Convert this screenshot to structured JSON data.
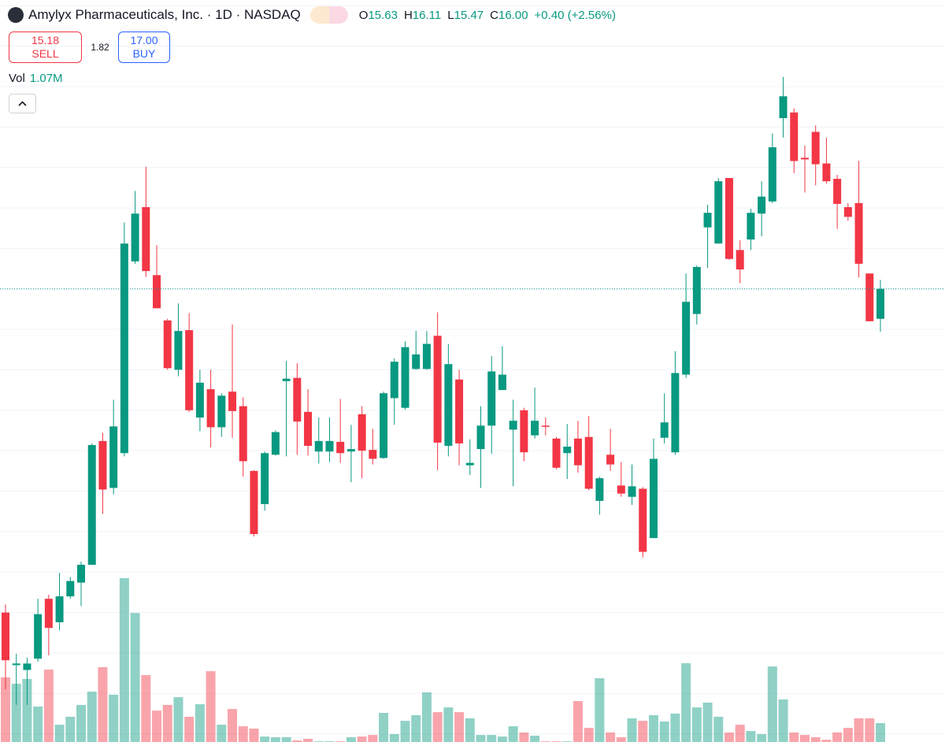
{
  "header": {
    "title": "Amylyx Pharmaceuticals, Inc. · 1D · NASDAQ",
    "open_label": "O",
    "open": "15.63",
    "high_label": "H",
    "high": "16.11",
    "low_label": "L",
    "low": "15.47",
    "close_label": "C",
    "close": "16.00",
    "change": "+0.40 (+2.56%)"
  },
  "trade": {
    "sell_price": "15.18",
    "sell_label": "SELL",
    "spread": "1.82",
    "buy_price": "17.00",
    "buy_label": "BUY"
  },
  "volume_legend": {
    "label": "Vol",
    "value": "1.07M"
  },
  "chart_data": {
    "type": "candlestick",
    "open": [
      12.0,
      11.35,
      11.29,
      11.43,
      12.17,
      11.88,
      12.2,
      12.37,
      12.59,
      14.12,
      13.54,
      13.97,
      16.34,
      17.01,
      16.17,
      15.61,
      15.0,
      15.49,
      14.41,
      14.76,
      14.29,
      14.73,
      14.55,
      13.75,
      13.34,
      13.95,
      14.86,
      14.9,
      14.48,
      13.99,
      13.99,
      14.11,
      13.99,
      14.45,
      14.01,
      13.91,
      14.65,
      14.53,
      15.01,
      15.01,
      15.42,
      14.06,
      14.88,
      13.82,
      14.02,
      14.31,
      14.75,
      14.26,
      14.5,
      14.19,
      14.31,
      14.15,
      13.97,
      14.15,
      14.17,
      13.38,
      13.95,
      13.57,
      13.43,
      13.53,
      12.92,
      14.16,
      13.98,
      14.94,
      15.69,
      16.76,
      16.56,
      17.37,
      16.48,
      16.61,
      16.93,
      17.08,
      18.11,
      18.18,
      17.62,
      17.94,
      17.55,
      17.36,
      17.01,
      17.06,
      16.19,
      15.63
    ],
    "high": [
      12.1,
      11.49,
      11.44,
      12.17,
      12.22,
      12.49,
      12.44,
      12.63,
      14.09,
      14.22,
      14.63,
      16.82,
      17.21,
      17.51,
      16.54,
      15.63,
      15.82,
      15.7,
      15.0,
      15.0,
      14.71,
      15.56,
      14.66,
      13.76,
      13.99,
      14.25,
      15.11,
      15.08,
      14.76,
      14.41,
      14.41,
      14.64,
      14.32,
      14.55,
      14.27,
      14.73,
      15.14,
      15.35,
      15.48,
      15.48,
      15.71,
      15.32,
      15.0,
      14.14,
      14.55,
      15.17,
      15.29,
      14.63,
      14.53,
      14.78,
      14.41,
      14.17,
      14.33,
      14.37,
      14.43,
      13.68,
      14.27,
      13.86,
      13.83,
      13.55,
      14.15,
      14.71,
      15.23,
      16.19,
      16.29,
      17.04,
      17.37,
      17.37,
      16.6,
      16.99,
      17.33,
      17.92,
      18.62,
      18.23,
      17.77,
      18.02,
      17.87,
      17.41,
      17.06,
      17.58,
      16.19,
      16.11
    ],
    "low": [
      11.05,
      10.86,
      10.86,
      11.39,
      11.47,
      11.78,
      12.17,
      12.08,
      12.59,
      13.22,
      13.46,
      13.93,
      16.31,
      16.15,
      15.76,
      15.0,
      14.92,
      14.48,
      14.24,
      14.04,
      14.17,
      14.16,
      13.68,
      12.94,
      13.26,
      13.94,
      13.93,
      13.95,
      13.94,
      13.84,
      13.86,
      13.85,
      13.61,
      13.66,
      13.83,
      13.9,
      14.32,
      14.51,
      15.0,
      15.0,
      13.76,
      13.93,
      13.82,
      13.7,
      13.54,
      13.96,
      14.75,
      13.56,
      13.87,
      14.15,
      14.19,
      13.77,
      13.65,
      13.73,
      13.51,
      13.21,
      13.75,
      13.43,
      13.33,
      12.68,
      12.92,
      14.09,
      13.95,
      14.9,
      15.56,
      16.26,
      16.56,
      16.36,
      16.07,
      16.48,
      16.65,
      17.06,
      17.87,
      17.43,
      17.19,
      17.28,
      17.3,
      16.74,
      16.84,
      16.14,
      15.6,
      15.47
    ],
    "close": [
      11.41,
      11.37,
      11.37,
      11.98,
      11.81,
      12.2,
      12.39,
      12.59,
      14.07,
      13.52,
      14.3,
      16.56,
      16.93,
      16.22,
      15.76,
      15.02,
      15.48,
      14.5,
      14.84,
      14.29,
      14.68,
      14.49,
      13.87,
      12.97,
      13.97,
      14.23,
      14.89,
      14.36,
      14.06,
      14.12,
      14.12,
      13.97,
      14.02,
      14.0,
      13.9,
      14.71,
      15.1,
      15.28,
      15.19,
      15.32,
      14.1,
      15.07,
      14.09,
      13.85,
      14.31,
      14.98,
      14.94,
      14.37,
      13.98,
      14.37,
      14.3,
      13.79,
      14.05,
      13.82,
      13.53,
      13.66,
      13.83,
      13.47,
      13.56,
      12.75,
      13.9,
      14.35,
      14.96,
      15.84,
      16.27,
      16.94,
      17.33,
      16.37,
      16.24,
      16.94,
      17.14,
      17.75,
      18.38,
      17.58,
      17.6,
      17.54,
      17.33,
      17.05,
      16.89,
      16.31,
      15.6,
      16.0
    ],
    "volume": [
      3.66,
      3.3,
      3.57,
      2.01,
      4.1,
      0.98,
      1.43,
      2.1,
      2.85,
      4.24,
      2.68,
      9.28,
      7.31,
      3.79,
      1.78,
      2.1,
      2.54,
      1.43,
      2.14,
      4.01,
      0.98,
      1.87,
      0.89,
      0.76,
      0.31,
      0.27,
      0.27,
      0.09,
      0.18,
      0.04,
      0.04,
      0.04,
      0.27,
      0.31,
      0.4,
      1.65,
      0.45,
      1.2,
      1.52,
      2.81,
      1.69,
      1.96,
      1.69,
      1.34,
      0.4,
      0.4,
      0.31,
      0.89,
      0.54,
      0.36,
      0.04,
      0.04,
      0.04,
      2.32,
      0.8,
      3.61,
      0.54,
      0.27,
      1.34,
      1.2,
      1.52,
      1.16,
      1.61,
      4.46,
      1.96,
      2.23,
      1.43,
      0.54,
      0.98,
      0.62,
      0.45,
      4.28,
      2.41,
      0.54,
      0.4,
      0.27,
      0.13,
      0.54,
      0.8,
      1.34,
      1.34,
      1.07
    ],
    "up_color": "#089981",
    "down_color": "#f23645",
    "ylim": [
      10.4,
      19.57
    ],
    "volume_ylim": [
      0,
      11.6
    ],
    "ygrid": [
      10.5,
      11,
      11.5,
      12,
      12.5,
      13,
      13.5,
      14,
      14.5,
      15,
      15.5,
      16,
      16.5,
      17,
      17.5,
      18,
      18.5,
      19,
      19.5
    ],
    "grid": true,
    "last_price_line": true
  }
}
